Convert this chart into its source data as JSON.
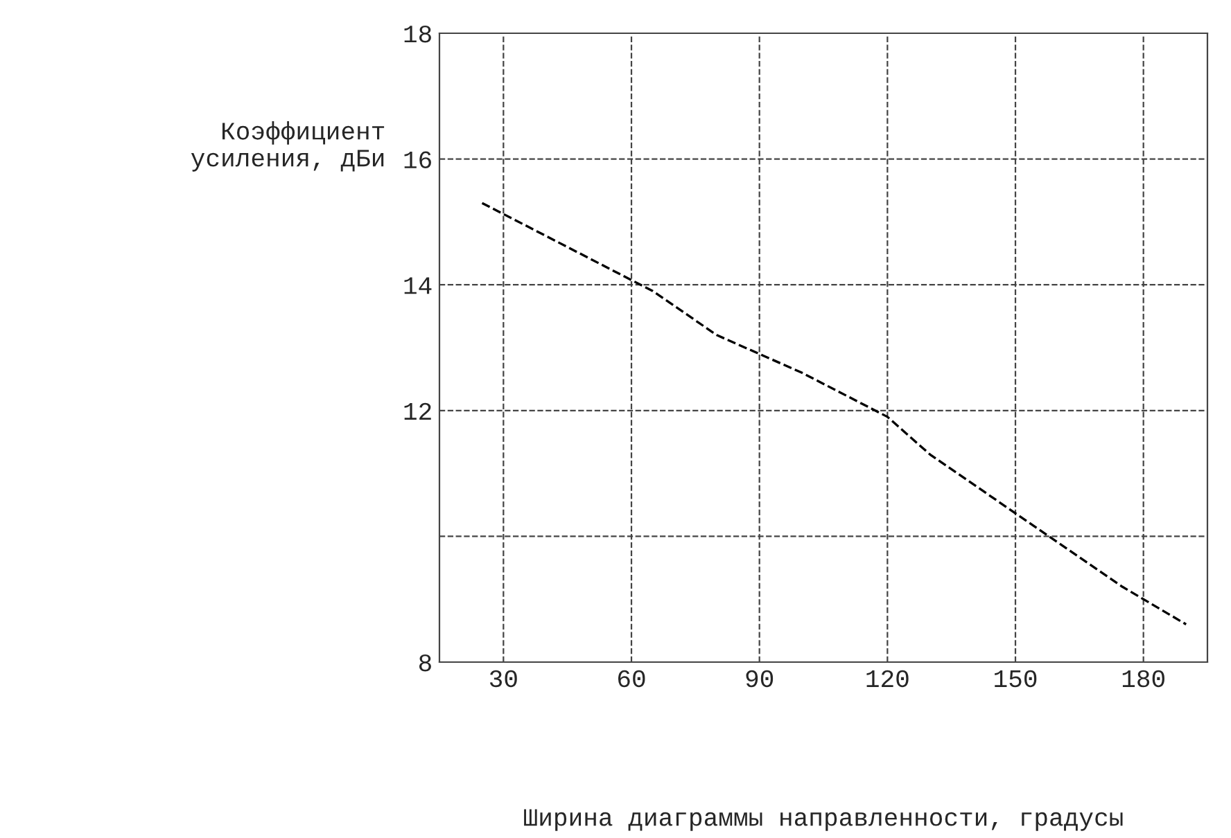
{
  "chart_data": {
    "type": "line",
    "xlabel": "Ширина диаграммы направленности, градусы",
    "ylabel": "Коэффициент\nусиления, дБи",
    "x": [
      25,
      45,
      65,
      80,
      100,
      120,
      130,
      145,
      160,
      175,
      190
    ],
    "values": [
      15.3,
      14.6,
      13.9,
      13.2,
      12.6,
      11.9,
      11.3,
      10.6,
      9.9,
      9.2,
      8.6
    ],
    "color": "#000000",
    "xlim": [
      15,
      195
    ],
    "xticks": [
      30,
      60,
      90,
      120,
      150,
      180
    ],
    "ylim": [
      8,
      18
    ],
    "yticks": [
      8,
      {
        "value": 10,
        "label": null
      },
      12,
      14,
      16,
      18
    ],
    "grid": true,
    "line_style": "dashed",
    "marker": "none"
  }
}
